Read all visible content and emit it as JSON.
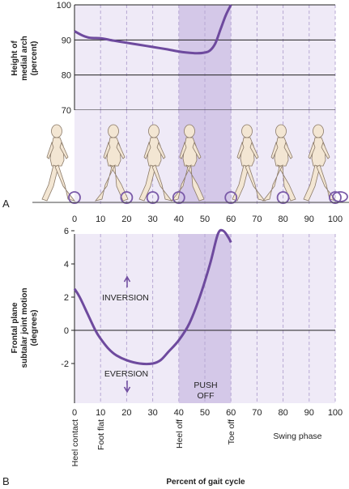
{
  "chart_data": [
    {
      "panel": "A",
      "type": "line",
      "ylabel": [
        "Height of",
        "medial arch",
        "(percent)"
      ],
      "ylim": [
        70,
        100
      ],
      "yticks": [
        "100",
        "90",
        "80",
        "70"
      ],
      "xlim": [
        0,
        100
      ],
      "xticks": [
        "0",
        "10",
        "20",
        "30",
        "40",
        "50",
        "60",
        "70",
        "80",
        "90",
        "100"
      ],
      "grid": true,
      "shaded_band": [
        40,
        60
      ],
      "series": [
        {
          "x": [
            0,
            3,
            6,
            10,
            15,
            20,
            25,
            30,
            35,
            40,
            43,
            47,
            50,
            52,
            54,
            56,
            58,
            60
          ],
          "values": [
            92.5,
            91.3,
            90.6,
            90.5,
            89.8,
            89.2,
            88.6,
            88.0,
            87.4,
            86.7,
            86.4,
            86.2,
            86.4,
            87.0,
            89.0,
            93.0,
            97.0,
            100
          ]
        }
      ]
    },
    {
      "panel": "B",
      "type": "line",
      "ylabel": [
        "Frontal plane",
        "subtalar joint motion",
        "(degrees)"
      ],
      "ylim": [
        -6,
        7
      ],
      "yticks": [
        "6",
        "4",
        "2",
        "0",
        "-2"
      ],
      "xlim": [
        0,
        100
      ],
      "xticks": [
        "0",
        "10",
        "20",
        "30",
        "40",
        "50",
        "60",
        "70",
        "80",
        "90",
        "100"
      ],
      "xlabel": "Percent of gait cycle",
      "grid": true,
      "shaded_band": [
        40,
        60
      ],
      "series": [
        {
          "x": [
            0,
            2,
            5,
            8,
            10,
            13,
            16,
            20,
            25,
            30,
            33,
            36,
            40,
            44,
            48,
            52,
            55,
            57,
            59,
            60
          ],
          "values": [
            2.5,
            2.0,
            1.0,
            0.0,
            -0.5,
            -1.1,
            -1.5,
            -1.8,
            -2.0,
            -2.0,
            -1.8,
            -1.3,
            -0.6,
            0.4,
            2.0,
            4.0,
            5.8,
            6.0,
            5.6,
            5.3
          ]
        }
      ],
      "annotations": {
        "inversion": "INVERSION",
        "eversion": "EVERSION",
        "push_off": [
          "PUSH",
          "OFF"
        ]
      },
      "event_labels": [
        {
          "x": 0,
          "label": "Heel contact"
        },
        {
          "x": 10,
          "label": "Foot flat"
        },
        {
          "x": 40,
          "label": "Heel off"
        },
        {
          "x": 60,
          "label": "Toe off"
        },
        {
          "x": 70,
          "label": "Swing phase"
        }
      ]
    }
  ],
  "panel_labels": {
    "a": "A",
    "b": "B"
  },
  "colors": {
    "curve": "#6e4a9e",
    "band_light": "#efeaf7",
    "band_dark": "#d4c8e8",
    "grid_dash": "#b7a8d3",
    "figure": "#f3e6d3",
    "figure_outline": "#8b7a68",
    "marker_circle": "#7a5aa8"
  },
  "walking_figure_count": 8
}
